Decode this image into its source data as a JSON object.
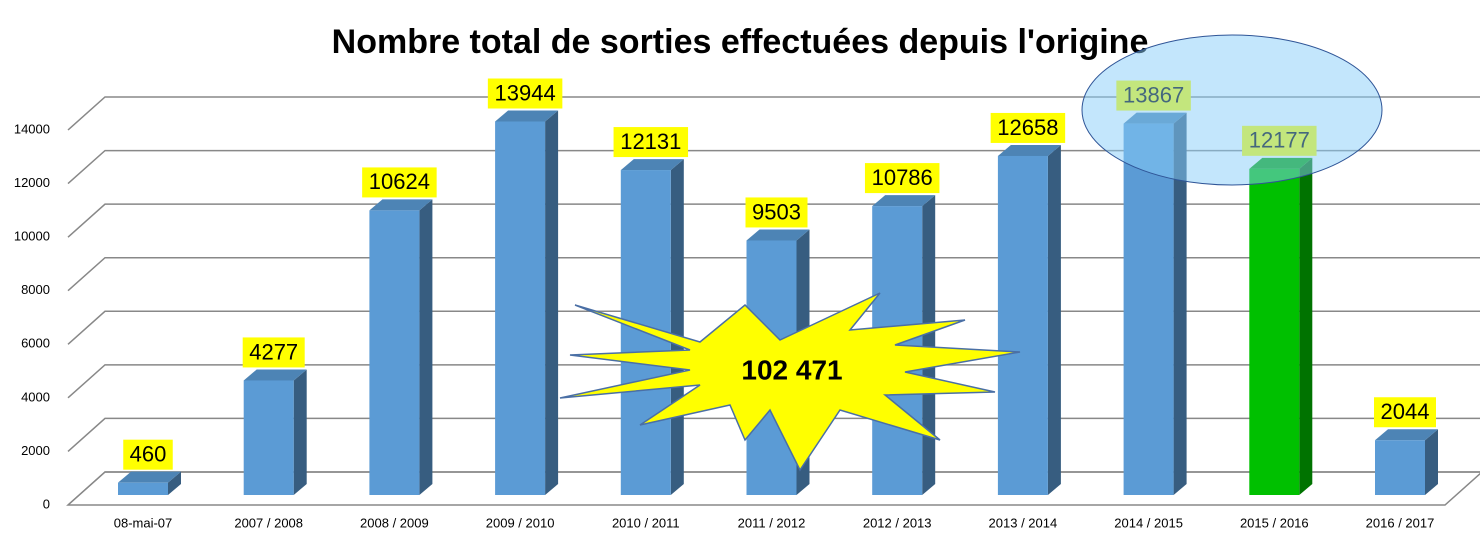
{
  "chart_data": {
    "type": "bar",
    "title": "Nombre total de sorties effectuées depuis l'origine",
    "categories": [
      "08-mai-07",
      "2007 / 2008",
      "2008 / 2009",
      "2009 / 2010",
      "2010 / 2011",
      "2011 / 2012",
      "2012 / 2013",
      "2013 / 2014",
      "2014 / 2015",
      "2015 / 2016",
      "2016 / 2017"
    ],
    "values": [
      460,
      4277,
      10624,
      13944,
      12131,
      9503,
      10786,
      12658,
      13867,
      12177,
      2044
    ],
    "colors": [
      "#5b9bd5",
      "#5b9bd5",
      "#5b9bd5",
      "#5b9bd5",
      "#5b9bd5",
      "#5b9bd5",
      "#5b9bd5",
      "#5b9bd5",
      "#5b9bd5",
      "#00c000",
      "#5b9bd5"
    ],
    "ylim": [
      0,
      14000
    ],
    "yticks": [
      0,
      2000,
      4000,
      6000,
      8000,
      10000,
      12000,
      14000
    ],
    "grid": true,
    "annotations": [
      "102 471"
    ]
  }
}
